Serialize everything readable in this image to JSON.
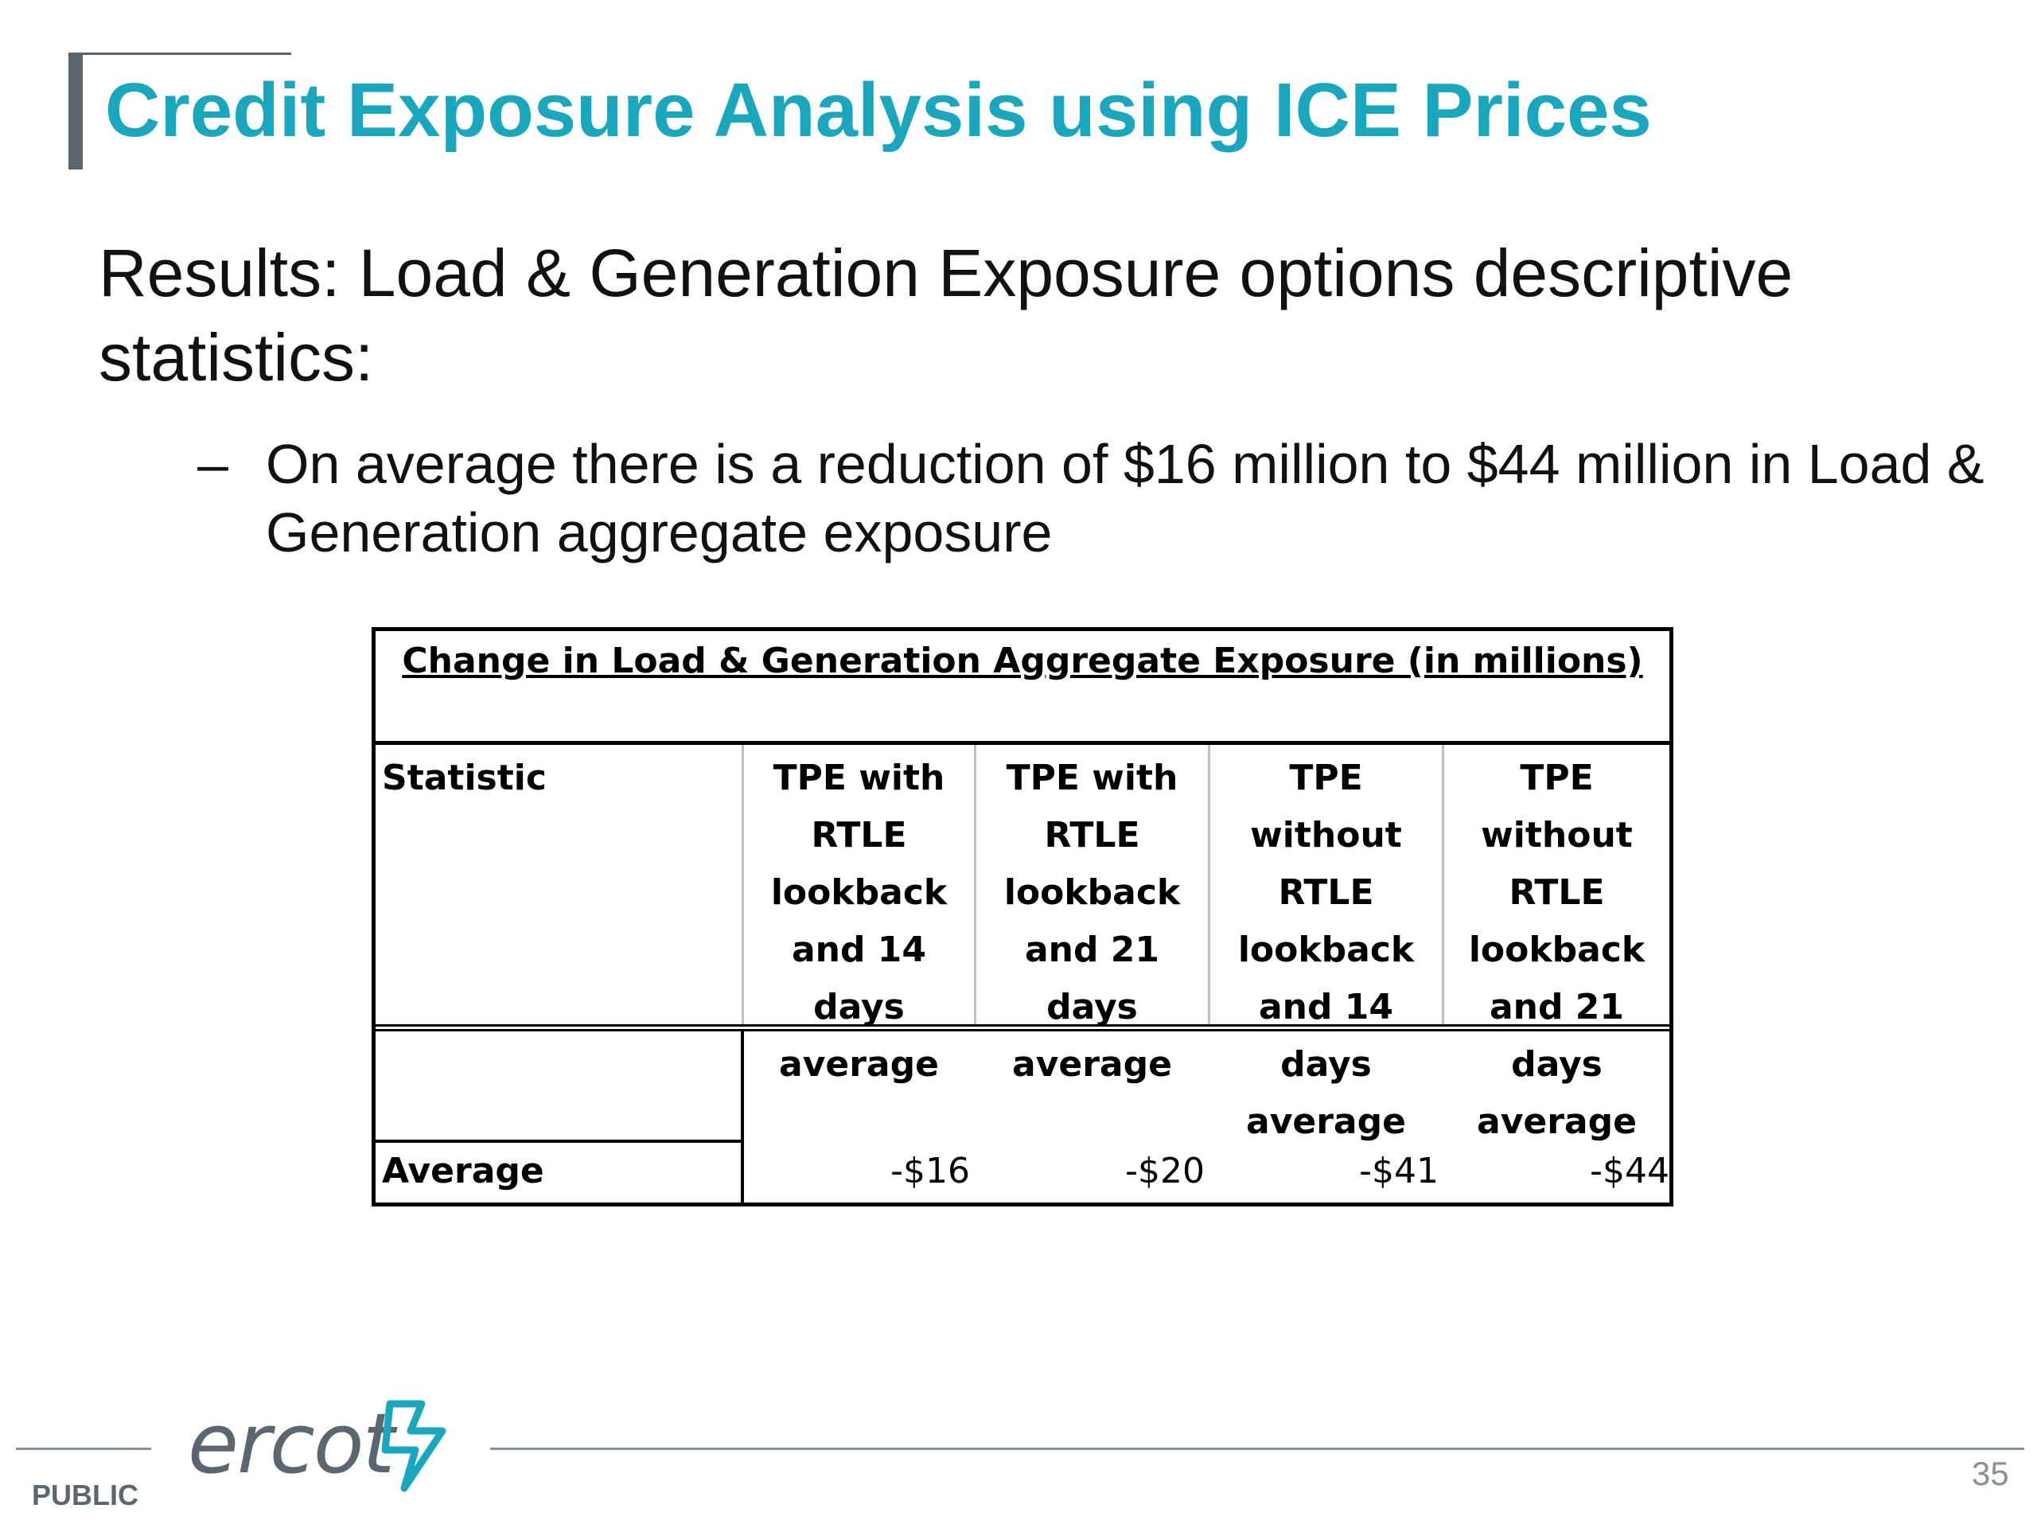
{
  "slide": {
    "title": "Credit Exposure Analysis using ICE Prices",
    "subtitle": "Results: Load & Generation Exposure options descriptive statistics:",
    "bullet_dash": "–",
    "bullet": "On average there is a reduction of $16 million to $44 million in Load & Generation aggregate exposure"
  },
  "table": {
    "title": "Change in Load & Generation Aggregate Exposure (in millions)",
    "columns": [
      "Statistic",
      "TPE with RTLE lookback and 14 days average",
      "TPE with RTLE lookback and 21 days average",
      "TPE without RTLE lookback and 14 days average",
      "TPE without RTLE lookback and 21 days average"
    ],
    "rows": [
      {
        "label": "Average",
        "values": [
          "-$16",
          "-$20",
          "-$41",
          "-$44"
        ]
      }
    ]
  },
  "footer": {
    "logo_text": "ercot",
    "classification": "PUBLIC",
    "page_number": "35"
  },
  "colors": {
    "title": "#1aa6bd",
    "accent_gray": "#5b6670"
  }
}
